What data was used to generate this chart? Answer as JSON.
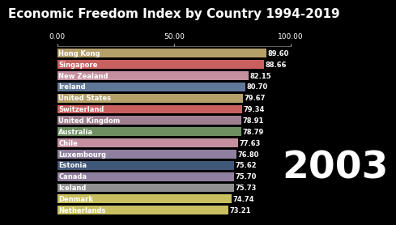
{
  "title": "Economic Freedom Index by Country 1994-2019",
  "year_label": "2003",
  "background_color": "#000000",
  "text_color": "#ffffff",
  "countries": [
    "Hong Kong",
    "Singapore",
    "New Zealand",
    "Ireland",
    "United States",
    "Switzerland",
    "United Kingdom",
    "Australia",
    "Chile",
    "Luxembourg",
    "Estonia",
    "Canada",
    "Iceland",
    "Denmark",
    "Netherlands"
  ],
  "values": [
    89.6,
    88.66,
    82.15,
    80.7,
    79.67,
    79.34,
    78.91,
    78.79,
    77.63,
    76.8,
    75.62,
    75.7,
    75.73,
    74.74,
    73.21
  ],
  "bar_colors": [
    "#b5a06a",
    "#c96060",
    "#c490a0",
    "#607898",
    "#b5a06a",
    "#c96060",
    "#a08090",
    "#6d9060",
    "#c490a0",
    "#9080a0",
    "#405878",
    "#9080a0",
    "#909090",
    "#c8c060",
    "#c8c060"
  ],
  "xticks": [
    0,
    50,
    100
  ],
  "xtick_labels": [
    "0.00",
    "50.00",
    "100.00"
  ],
  "bar_height": 0.78,
  "value_fontsize": 6.0,
  "country_fontsize": 6.0,
  "title_fontsize": 11,
  "year_fontsize": 34,
  "axis_tick_fontsize": 6.5
}
